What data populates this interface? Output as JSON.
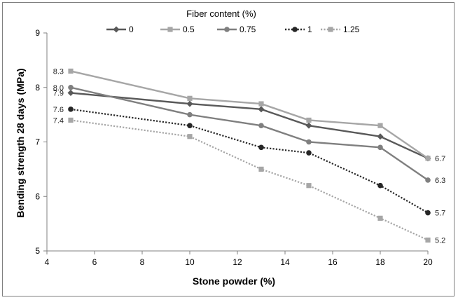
{
  "chart_data": {
    "type": "line",
    "title": "",
    "xlabel": "Stone powder (%)",
    "ylabel": "Bending strength 28 days (MPa)",
    "xlim": [
      4,
      20
    ],
    "ylim": [
      5,
      9
    ],
    "xticks": [
      4,
      6,
      8,
      10,
      12,
      14,
      16,
      18,
      20
    ],
    "yticks": [
      5,
      6,
      7,
      8,
      9
    ],
    "grid": false,
    "legend": {
      "title": "Fiber content (%)",
      "placement": "top"
    },
    "x": [
      5,
      10,
      13,
      15,
      18,
      20
    ],
    "series": [
      {
        "name": "0",
        "values": [
          7.9,
          7.7,
          7.6,
          7.3,
          7.1,
          6.7
        ],
        "color": "#595959",
        "dash": "solid",
        "marker": "diamond"
      },
      {
        "name": "0.5",
        "values": [
          8.3,
          7.8,
          7.7,
          7.4,
          7.3,
          6.7
        ],
        "color": "#a6a6a6",
        "dash": "solid",
        "marker": "square"
      },
      {
        "name": "0.75",
        "values": [
          8.0,
          7.5,
          7.3,
          7.0,
          6.9,
          6.3
        ],
        "color": "#7f7f7f",
        "dash": "solid",
        "marker": "circle"
      },
      {
        "name": "1",
        "values": [
          7.6,
          7.3,
          6.9,
          6.8,
          6.2,
          5.7
        ],
        "color": "#262626",
        "dash": "dotted",
        "marker": "circle"
      },
      {
        "name": "1.25",
        "values": [
          7.4,
          7.1,
          6.5,
          6.2,
          5.6,
          5.2
        ],
        "color": "#a6a6a6",
        "dash": "dotted",
        "marker": "square"
      }
    ],
    "annotations": {
      "start": [
        "8.3",
        "8.0",
        "7.9",
        "7.6",
        "7.4"
      ],
      "end": [
        "6.7",
        "6.3",
        "5.7",
        "5.2"
      ]
    }
  }
}
